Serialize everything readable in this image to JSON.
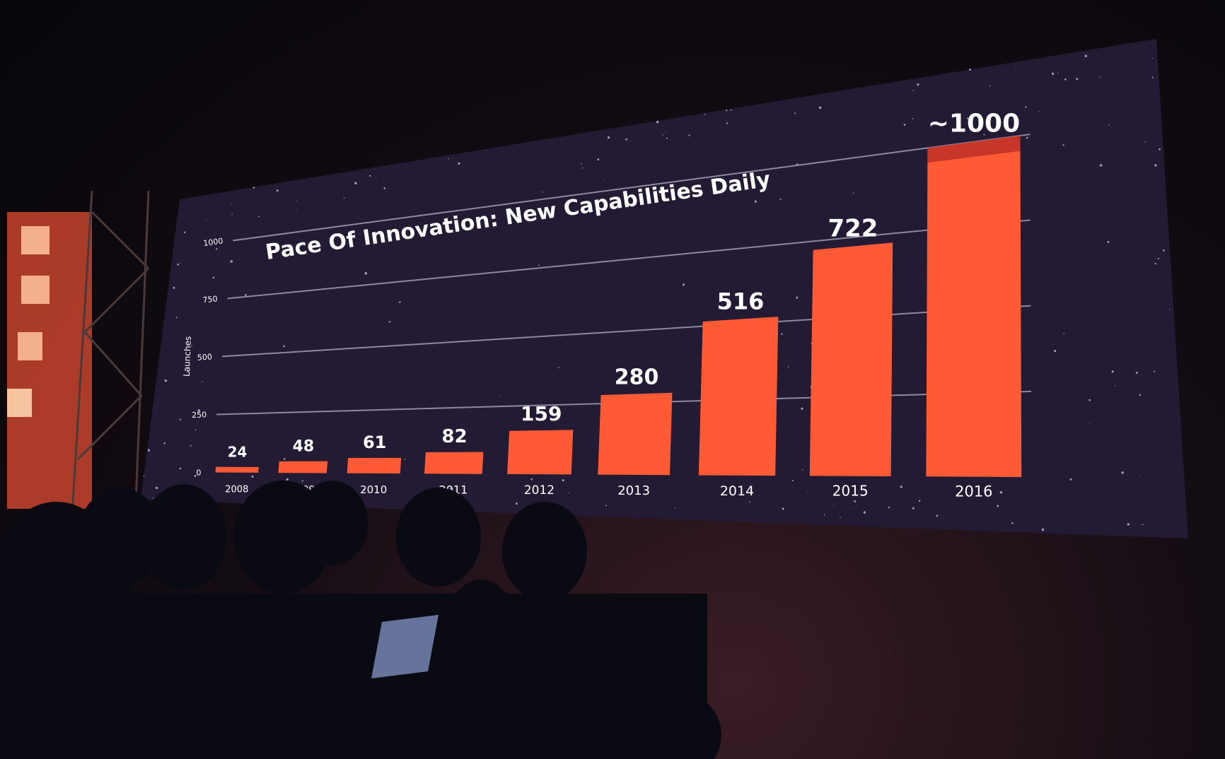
{
  "chart_data": {
    "type": "bar",
    "title": "Pace Of Innovation: New Capabilities Daily",
    "ylabel": "Launches",
    "xlabel": "",
    "categories": [
      "2008",
      "2009",
      "2010",
      "2011",
      "2012",
      "2013",
      "2014",
      "2015",
      "2016"
    ],
    "values": [
      24,
      48,
      61,
      82,
      159,
      280,
      516,
      722,
      1000
    ],
    "value_labels": [
      "24",
      "48",
      "61",
      "82",
      "159",
      "280",
      "516",
      "722",
      "~1000"
    ],
    "yticks": [
      "0",
      "250",
      "500",
      "750",
      "1000"
    ],
    "ylim": [
      0,
      1000
    ],
    "grid": true,
    "legend": "none",
    "colors": {
      "bar": "#ff5a36",
      "bar_top": "#c8362a",
      "background": "#231a33",
      "text": "#ffffff"
    }
  }
}
